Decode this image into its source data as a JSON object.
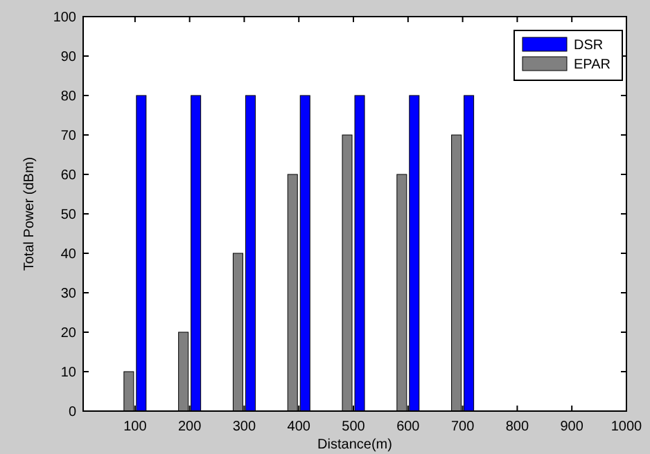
{
  "chart_data": {
    "type": "bar",
    "xlabel": "Distance(m)",
    "ylabel": "Total Power (dBm)",
    "categories": [
      "100",
      "200",
      "300",
      "400",
      "500",
      "600",
      "700",
      "800",
      "900",
      "1000"
    ],
    "series": [
      {
        "name": "DSR",
        "color": "#0000ff",
        "values": [
          80,
          80,
          80,
          80,
          80,
          80,
          80,
          null,
          null,
          null
        ]
      },
      {
        "name": "EPAR",
        "color": "#808080",
        "values": [
          10,
          20,
          40,
          60,
          70,
          60,
          70,
          null,
          null,
          null
        ]
      }
    ],
    "ylim": [
      0,
      100
    ],
    "yticks": [
      0,
      10,
      20,
      30,
      40,
      50,
      60,
      70,
      80,
      90,
      100
    ],
    "grid": false,
    "legend": "top right"
  }
}
